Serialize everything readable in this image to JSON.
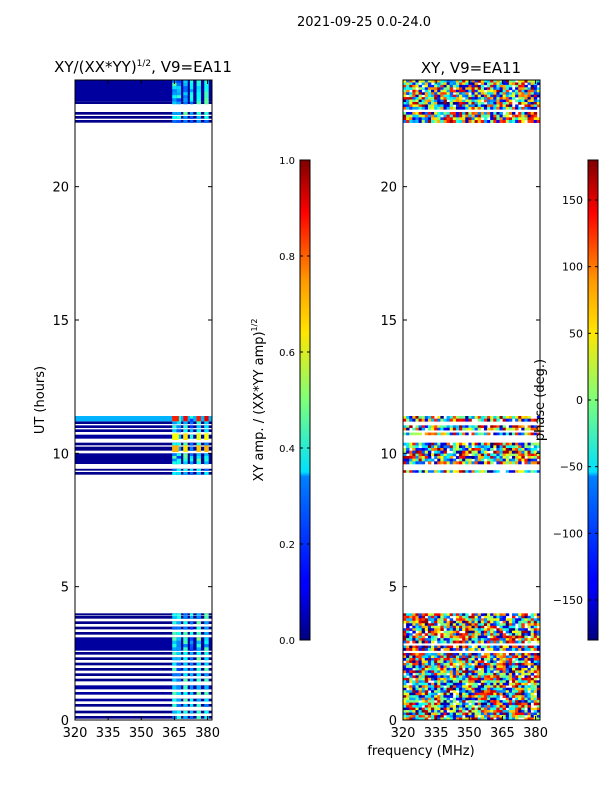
{
  "suptitle": "2021-09-25 0.0-24.0",
  "shared_xlabel": "frequency (MHz)",
  "chart_data": [
    {
      "type": "heatmap",
      "title": "XY/(XX*YY)^{1/2}, V9=EA11",
      "title_main": "XY/(XX*YY)",
      "title_exp": "1/2",
      "title_suffix": ", V9=EA11",
      "xlabel": "frequency (MHz)",
      "ylabel": "UT (hours)",
      "xlim": [
        320,
        382
      ],
      "ylim": [
        0,
        24
      ],
      "xticks": [
        320,
        335,
        350,
        365,
        380
      ],
      "yticks": [
        0,
        5,
        10,
        15,
        20
      ],
      "colorbar": {
        "label": "XY amp. / (XX*YY amp)^{1/2}",
        "label_main": "XY amp. / (XX*YY amp)",
        "label_exp": "1/2",
        "range": [
          0.0,
          1.0
        ],
        "ticks": [
          "0.0",
          "0.2",
          "0.4",
          "0.6",
          "0.8",
          "1.0"
        ],
        "tick_values": [
          0.0,
          0.2,
          0.4,
          0.6,
          0.8,
          1.0
        ]
      },
      "rows": [
        [
          0.05,
          0.15,
          0.01
        ],
        [
          0.25,
          0.35,
          0.01
        ],
        [
          0.5,
          0.6,
          0.01
        ],
        [
          0.7,
          0.8,
          0.03
        ],
        [
          0.95,
          1.05,
          0.03
        ],
        [
          1.15,
          1.3,
          0.03
        ],
        [
          1.45,
          1.55,
          0.01
        ],
        [
          1.65,
          1.75,
          0.01
        ],
        [
          1.85,
          1.95,
          0.01
        ],
        [
          2.05,
          2.15,
          0.01
        ],
        [
          2.25,
          2.35,
          0.01
        ],
        [
          2.45,
          2.55,
          0.01
        ],
        [
          2.6,
          3.1,
          0.03
        ],
        [
          3.2,
          3.3,
          0.01
        ],
        [
          3.4,
          3.5,
          0.01
        ],
        [
          3.6,
          3.7,
          0.01
        ],
        [
          3.8,
          3.9,
          0.01
        ],
        [
          3.92,
          4.0,
          0.01
        ],
        [
          9.2,
          9.3,
          0.01
        ],
        [
          9.35,
          9.42,
          0.01
        ],
        [
          9.6,
          10.0,
          0.02
        ],
        [
          10.1,
          10.25,
          0.01
        ],
        [
          10.3,
          10.4,
          0.01
        ],
        [
          10.55,
          10.7,
          0.03
        ],
        [
          10.8,
          10.9,
          0.02
        ],
        [
          10.95,
          11.05,
          0.02
        ],
        [
          11.1,
          11.2,
          0.01
        ],
        [
          11.2,
          11.4,
          0.3
        ],
        [
          22.4,
          22.5,
          0.01
        ],
        [
          22.55,
          22.65,
          0.01
        ],
        [
          22.7,
          22.8,
          0.01
        ],
        [
          23.1,
          23.2,
          0.01
        ],
        [
          23.2,
          24.0,
          0.03
        ]
      ],
      "hot_channels": [
        [
          364,
          366,
          0.35
        ],
        [
          366,
          368,
          0.3
        ],
        [
          369,
          371,
          0.35
        ],
        [
          372,
          373.5,
          0.3
        ],
        [
          375,
          377,
          0.38
        ],
        [
          378.5,
          380.5,
          0.35
        ]
      ],
      "hot_cells": [
        [
          364,
          367,
          10.05,
          10.3,
          0.7
        ],
        [
          369,
          371,
          10.05,
          10.3,
          0.65
        ],
        [
          375,
          377,
          10.05,
          10.3,
          0.68
        ],
        [
          378.5,
          380.5,
          10.05,
          10.3,
          0.7
        ],
        [
          364,
          367,
          10.5,
          10.75,
          0.62
        ],
        [
          369,
          371,
          10.5,
          10.75,
          0.65
        ],
        [
          375,
          377,
          10.5,
          10.75,
          0.6
        ],
        [
          378.5,
          380.5,
          10.5,
          10.75,
          0.62
        ],
        [
          364,
          367,
          11.2,
          11.4,
          0.85
        ],
        [
          369,
          371,
          11.2,
          11.4,
          0.88
        ],
        [
          375,
          377,
          11.2,
          11.4,
          0.85
        ],
        [
          378.5,
          380.5,
          11.2,
          11.4,
          0.9
        ]
      ]
    },
    {
      "type": "heatmap",
      "title": "XY, V9=EA11",
      "xlabel": "frequency (MHz)",
      "ylabel": "",
      "xlim": [
        320,
        382
      ],
      "ylim": [
        0,
        24
      ],
      "xticks": [
        320,
        335,
        350,
        365,
        380
      ],
      "yticks": [
        0,
        5,
        10,
        15,
        20
      ],
      "colorbar": {
        "label": "phase (deg.)",
        "range": [
          -180,
          180
        ],
        "ticks": [
          "−150",
          "−100",
          "−50",
          "0",
          "50",
          "100",
          "150"
        ],
        "tick_values": [
          -150,
          -100,
          -50,
          0,
          50,
          100,
          150
        ]
      },
      "rows": [
        [
          0.0,
          4.0,
          0.0
        ],
        [
          9.2,
          9.45,
          0.0
        ],
        [
          9.6,
          10.0,
          0.0
        ],
        [
          10.0,
          10.5,
          0.0
        ],
        [
          10.6,
          11.05,
          0.0
        ],
        [
          11.1,
          11.4,
          0.0
        ],
        [
          22.4,
          22.8,
          0.0
        ],
        [
          22.9,
          24.0,
          0.0
        ]
      ]
    }
  ]
}
